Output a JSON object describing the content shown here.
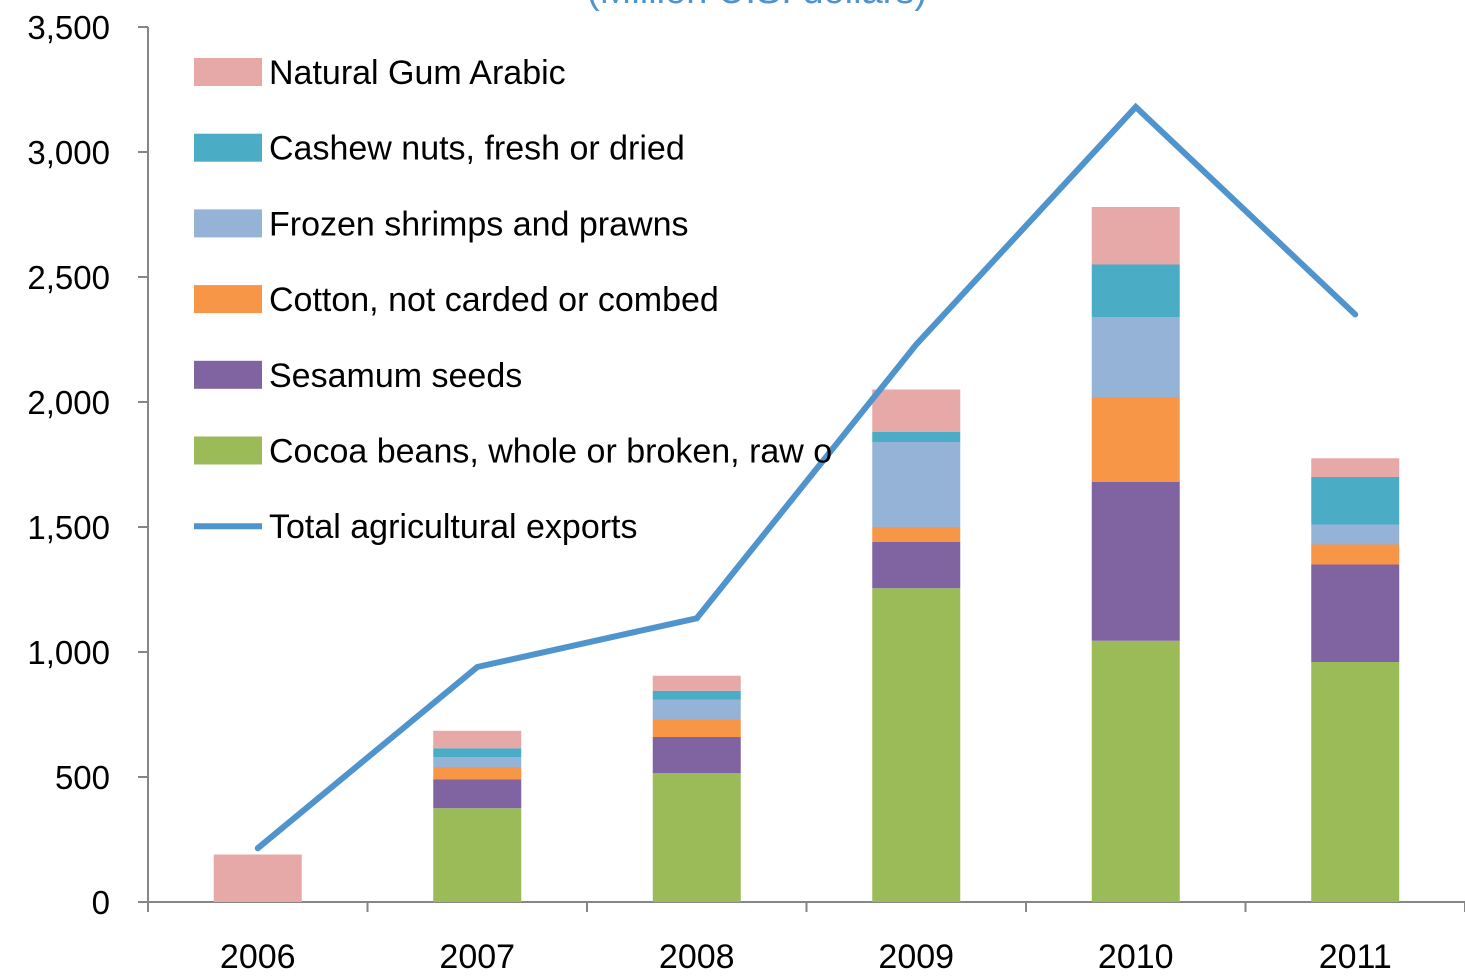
{
  "chart_data": {
    "type": "bar",
    "title": "(Million U.S. dollars)",
    "xlabel": "",
    "ylabel": "",
    "ylim": [
      0,
      3500
    ],
    "yticks": [
      0,
      500,
      1000,
      1500,
      2000,
      2500,
      3000,
      3500
    ],
    "ytick_labels": [
      "0",
      "500",
      "1,000",
      "1,500",
      "2,000",
      "2,500",
      "3,000",
      "3,500"
    ],
    "categories": [
      "2006",
      "2007",
      "2008",
      "2009",
      "2010",
      "2011"
    ],
    "stacked": true,
    "grid": false,
    "legend_position": "top-left",
    "series": [
      {
        "name": "Cocoa beans, whole or broken, raw o",
        "color": "#9bbb59",
        "values": [
          0,
          375,
          515,
          1255,
          1045,
          960
        ]
      },
      {
        "name": "Sesamum seeds",
        "color": "#8064a2",
        "values": [
          0,
          115,
          145,
          185,
          635,
          390
        ]
      },
      {
        "name": "Cotton, not carded or combed",
        "color": "#f79646",
        "values": [
          0,
          50,
          70,
          60,
          340,
          80
        ]
      },
      {
        "name": "Frozen shrimps and prawns",
        "color": "#95b3d7",
        "values": [
          0,
          40,
          80,
          340,
          320,
          80
        ]
      },
      {
        "name": "Cashew nuts, fresh or dried",
        "color": "#4bacc6",
        "values": [
          0,
          35,
          35,
          40,
          210,
          190
        ]
      },
      {
        "name": "Natural Gum Arabic",
        "color": "#e6a9a8",
        "values": [
          190,
          70,
          60,
          170,
          230,
          75
        ]
      }
    ],
    "line_series": {
      "name": "Total agricultural exports",
      "color": "#4f94cd",
      "values": [
        215,
        940,
        1135,
        2230,
        3180,
        2350
      ]
    }
  }
}
